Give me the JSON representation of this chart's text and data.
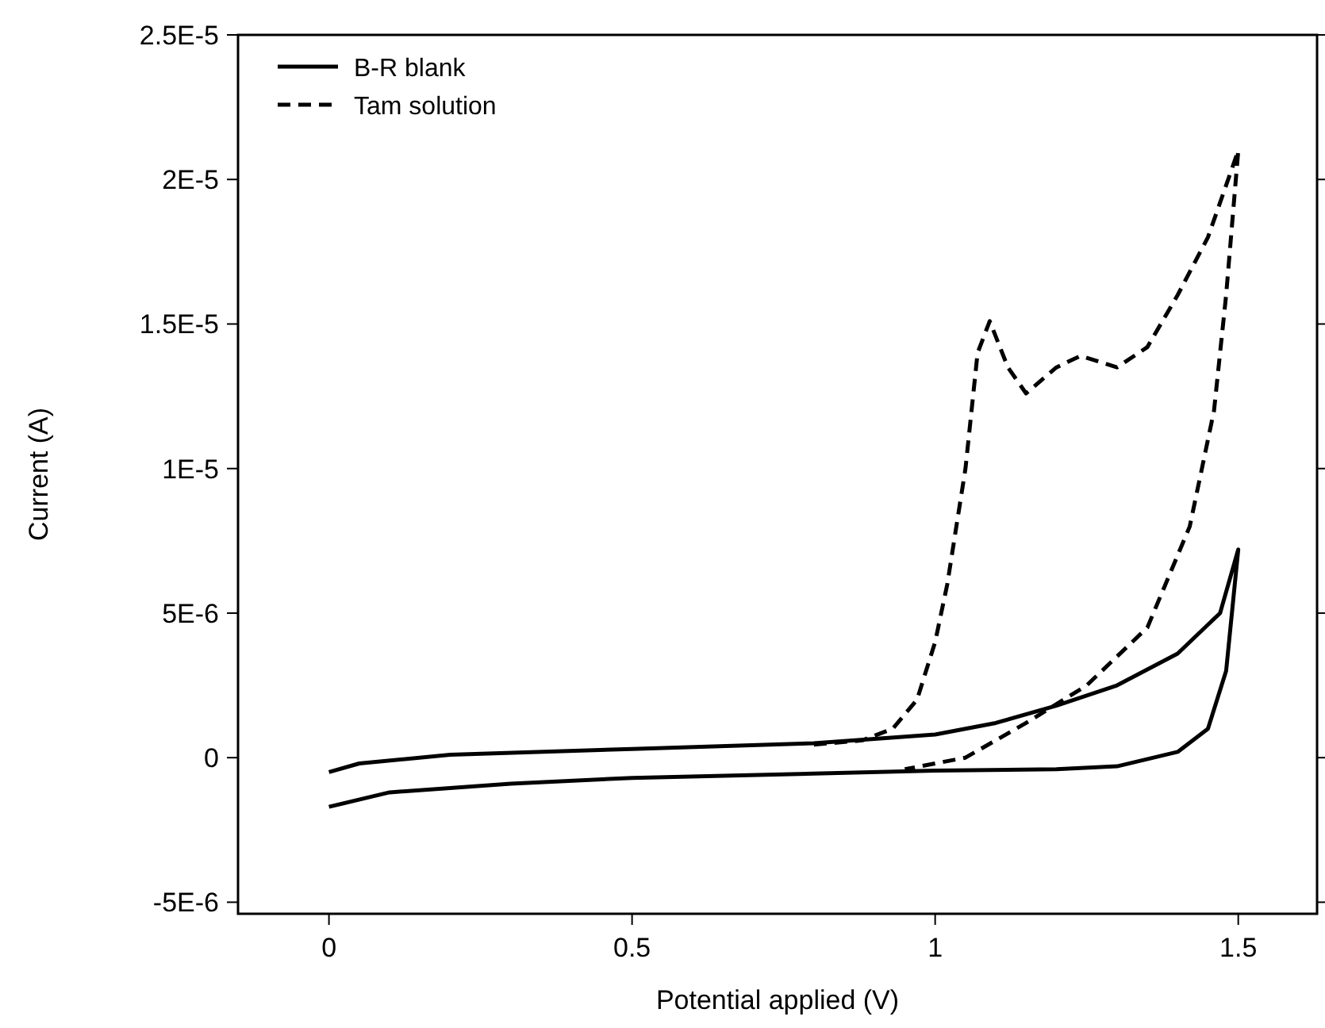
{
  "chart_data": {
    "type": "line",
    "xlabel": "Potential applied (V)",
    "ylabel": "Current (A)",
    "xlim": [
      -0.15,
      1.63
    ],
    "xticks": [
      0,
      0.5,
      1,
      1.5
    ],
    "ylim": [
      -5.4e-06,
      2.5e-05
    ],
    "yticks": [
      {
        "value": -5e-06,
        "label": "-5E-6"
      },
      0,
      {
        "value": 5e-06,
        "label": "5E-6"
      },
      {
        "value": 1e-05,
        "label": "1E-5"
      },
      {
        "value": 1.5e-05,
        "label": "1.5E-5"
      },
      {
        "value": 2e-05,
        "label": "2E-5"
      },
      {
        "value": 2.5e-05,
        "label": "2.5E-5"
      }
    ],
    "legend": "top left",
    "grid": false,
    "marker": "none",
    "series": [
      {
        "name": "B-R blank",
        "color": "#000000",
        "line_style": "solid",
        "x": [
          0,
          0.1,
          0.3,
          0.5,
          0.8,
          1.0,
          1.2,
          1.3,
          1.4,
          1.45,
          1.48,
          1.5,
          1.47,
          1.4,
          1.3,
          1.2,
          1.1,
          1.0,
          0.8,
          0.5,
          0.2,
          0.05,
          0
        ],
        "values": [
          -1.7e-06,
          -1.2e-06,
          -9e-07,
          -7e-07,
          -5.5e-07,
          -4.5e-07,
          -4e-07,
          -3e-07,
          2e-07,
          1e-06,
          3e-06,
          7.2e-06,
          5e-06,
          3.6e-06,
          2.5e-06,
          1.8e-06,
          1.2e-06,
          8e-07,
          5e-07,
          3e-07,
          1e-07,
          -2e-07,
          -5e-07
        ]
      },
      {
        "name": "Tam solution",
        "color": "#000000",
        "line_style": "dashed",
        "x": [
          0.8,
          0.88,
          0.93,
          0.97,
          1.0,
          1.02,
          1.05,
          1.07,
          1.09,
          1.12,
          1.15,
          1.2,
          1.24,
          1.3,
          1.35,
          1.4,
          1.45,
          1.5,
          1.48,
          1.46,
          1.42,
          1.35,
          1.25,
          1.15,
          1.05,
          0.95
        ],
        "values": [
          4.5e-07,
          6e-07,
          1e-06,
          2e-06,
          4e-06,
          6e-06,
          1e-05,
          1.4e-05,
          1.51e-05,
          1.35e-05,
          1.26e-05,
          1.35e-05,
          1.39e-05,
          1.35e-05,
          1.42e-05,
          1.6e-05,
          1.8e-05,
          2.1e-05,
          1.6e-05,
          1.2e-05,
          8e-06,
          4.5e-06,
          2.5e-06,
          1.2e-06,
          0,
          -4e-07
        ]
      }
    ]
  }
}
